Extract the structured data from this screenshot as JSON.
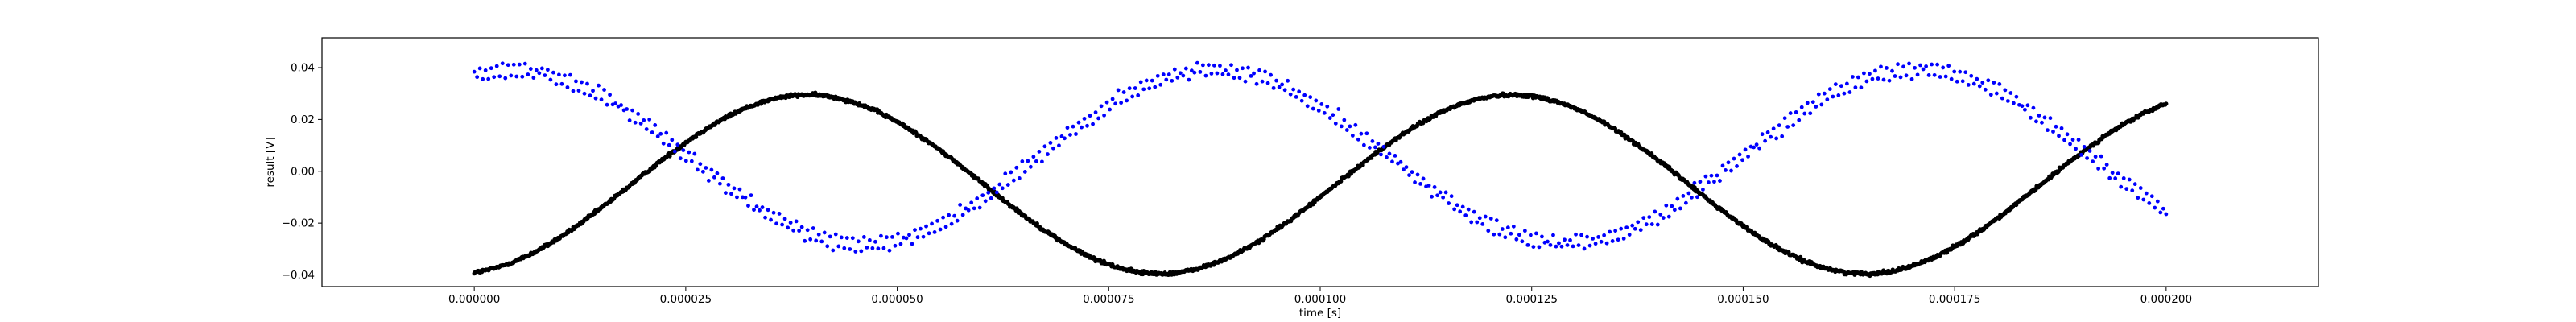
{
  "chart_data": {
    "type": "scatter",
    "title": "",
    "xlabel": "time [s]",
    "ylabel": "result [V]",
    "xlim": [
      -1.8e-05,
      0.000218
    ],
    "ylim": [
      -0.0445,
      0.0515
    ],
    "xticks": [
      0.0,
      2.5e-05,
      5e-05,
      7.5e-05,
      0.0001,
      0.000125,
      0.00015,
      0.000175,
      0.0002
    ],
    "xtick_labels": [
      "0.000000",
      "0.000025",
      "0.000050",
      "0.000075",
      "0.000100",
      "0.000125",
      "0.000150",
      "0.000175",
      "0.000200"
    ],
    "yticks": [
      -0.04,
      -0.02,
      0.0,
      0.02,
      0.04
    ],
    "ytick_labels": [
      "−0.04",
      "−0.02",
      "0.00",
      "0.02",
      "0.04"
    ],
    "grid": false,
    "legend": "none",
    "series": [
      {
        "color": "#000000",
        "marker": "dense-points",
        "x_range": [
          0.0,
          0.0002
        ],
        "n_points": 2000,
        "model": {
          "form": "offset + amplitude * sin(2*pi*frequency*x + phase)",
          "offset": -0.005,
          "amplitude": 0.0345,
          "frequency": 12000,
          "phase": -1.4
        },
        "noise": 0.0006
      },
      {
        "color": "#0000ff",
        "marker": "point",
        "x_range": [
          0.0,
          0.0002
        ],
        "n_points": 600,
        "model": {
          "form": "offset + amplitude * sin(2*pi*frequency*x + phase)",
          "offset": 0.0055,
          "amplitude": 0.0335,
          "frequency": 12050,
          "phase": 1.23
        },
        "branch_spread": 0.0035,
        "noise": 0.0016
      }
    ]
  }
}
